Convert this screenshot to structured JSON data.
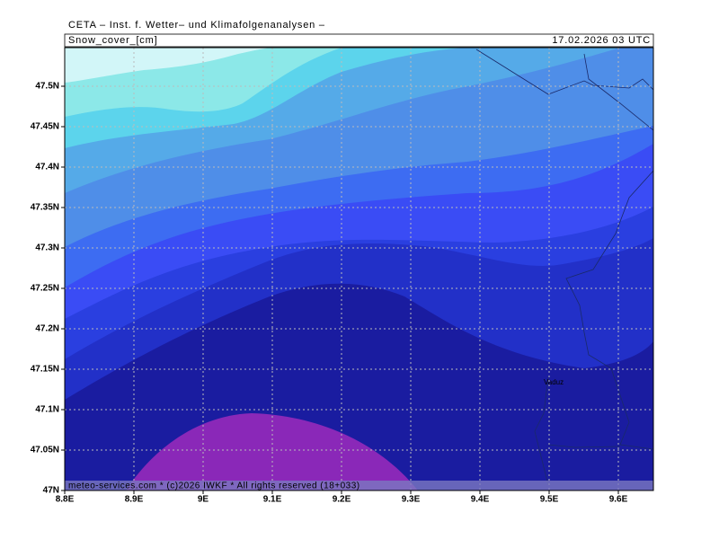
{
  "header": {
    "title": "CETA – Inst. f. Wetter– und Klimafolgenanalysen –",
    "variable": "Snow_cover_[cm]",
    "valid_time": "17.02.2026 03 UTC"
  },
  "axes": {
    "x_labels": [
      "8.8E",
      "8.9E",
      "9E",
      "9.1E",
      "9.2E",
      "9.3E",
      "9.4E",
      "9.5E",
      "9.6E"
    ],
    "y_labels": [
      "47N",
      "47.05N",
      "47.1N",
      "47.15N",
      "47.2N",
      "47.25N",
      "47.3N",
      "47.35N",
      "47.4N",
      "47.45N",
      "47.5N"
    ]
  },
  "places": [
    "Vaduz"
  ],
  "footer": "meteo-services.com * (c)2026 IWKF * All rights reserved (18+033)"
}
